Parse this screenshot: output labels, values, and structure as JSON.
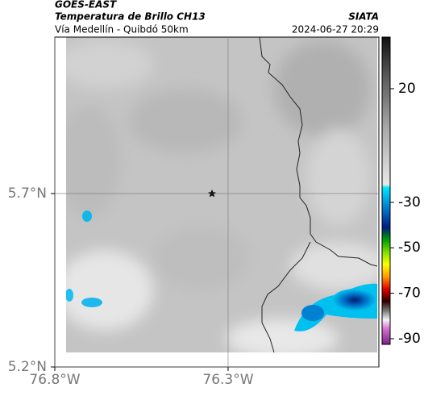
{
  "header": {
    "source": "GOES-EAST",
    "product": "Temperatura de Brillo CH13",
    "route": "Vía Medellín - Quibdó 50km",
    "agency": "SIATA",
    "datetime": "2024-06-27 20:29"
  },
  "map": {
    "xlim": [
      -76.8,
      -75.865
    ],
    "ylim": [
      5.2,
      6.151
    ],
    "xticks": [
      {
        "value": -76.8,
        "label": "76.8°W"
      },
      {
        "value": -76.3,
        "label": "76.3°W"
      }
    ],
    "yticks": [
      {
        "value": 5.7,
        "label": "5.7°N"
      },
      {
        "value": 5.2,
        "label": "5.2°N"
      }
    ],
    "grid": true
  },
  "colorbar": {
    "lim": [
      -92.5,
      42.7
    ],
    "ticks": [
      20,
      -30,
      -50,
      -70,
      -90
    ]
  }
}
